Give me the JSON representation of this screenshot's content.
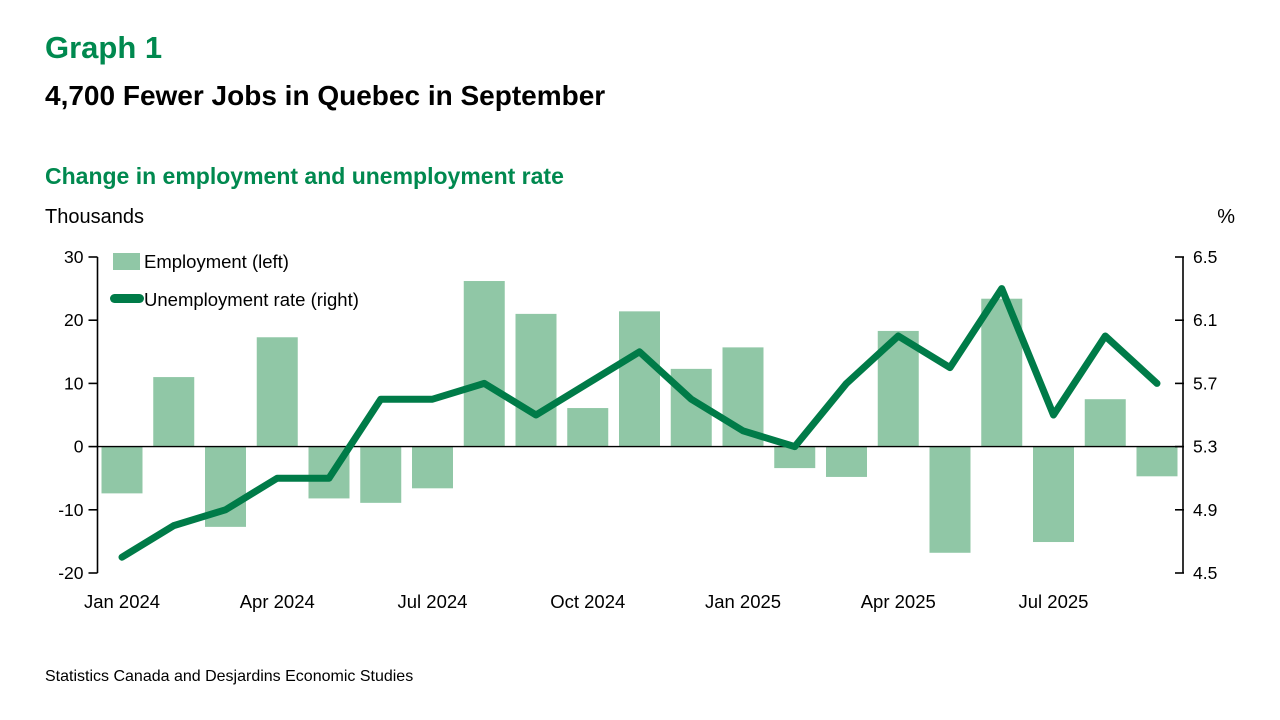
{
  "header": {
    "graph_label": "Graph 1",
    "title": "4,700 Fewer Jobs in Quebec in September",
    "subtitle": "Change in employment and unemployment rate",
    "left_unit": "Thousands",
    "right_unit": "%"
  },
  "legend": {
    "employment_label": "Employment (left)",
    "unemployment_label": "Unemployment rate (right)"
  },
  "footer": {
    "source": "Statistics Canada and Desjardins Economic Studies"
  },
  "colors": {
    "bar": "#90C7A6",
    "line": "#007B48",
    "accent_green": "#00894F",
    "axis": "#000000"
  },
  "chart_data": {
    "type": "bar",
    "title": "Change in employment and unemployment rate",
    "categories": [
      "Jan 2024",
      "Feb 2024",
      "Mar 2024",
      "Apr 2024",
      "May 2024",
      "Jun 2024",
      "Jul 2024",
      "Aug 2024",
      "Sep 2024",
      "Oct 2024",
      "Nov 2024",
      "Dec 2024",
      "Jan 2025",
      "Feb 2025",
      "Mar 2025",
      "Apr 2025",
      "May 2025",
      "Jun 2025",
      "Jul 2025",
      "Aug 2025",
      "Sep 2025"
    ],
    "series": [
      {
        "name": "Employment (left)",
        "type": "bar",
        "axis": "left",
        "values": [
          -7.4,
          11.0,
          -12.7,
          17.3,
          -8.2,
          -8.9,
          -6.6,
          26.2,
          21.0,
          6.1,
          21.4,
          12.3,
          15.7,
          -3.4,
          -4.8,
          18.3,
          -16.8,
          23.4,
          -15.1,
          7.5,
          -4.7
        ]
      },
      {
        "name": "Unemployment rate (right)",
        "type": "line",
        "axis": "right",
        "values": [
          4.6,
          4.8,
          4.9,
          5.1,
          5.1,
          5.6,
          5.6,
          5.7,
          5.5,
          5.7,
          5.9,
          5.6,
          5.4,
          5.3,
          5.7,
          6.0,
          5.8,
          6.3,
          5.5,
          6.0,
          5.7
        ]
      }
    ],
    "left_axis": {
      "label": "Thousands",
      "min": -20,
      "max": 30,
      "ticks": [
        30,
        20,
        10,
        0,
        -10,
        -20
      ]
    },
    "right_axis": {
      "label": "%",
      "min": 4.5,
      "max": 6.5,
      "ticks": [
        6.5,
        6.1,
        5.7,
        5.3,
        4.9,
        4.5
      ]
    },
    "x_tick_indices": [
      0,
      3,
      6,
      9,
      12,
      15,
      18
    ],
    "x_tick_labels": [
      "Jan 2024",
      "Apr 2024",
      "Jul 2024",
      "Oct 2024",
      "Jan 2025",
      "Apr 2025",
      "Jul 2025"
    ],
    "grid": false,
    "legend_position": "top-left-inside"
  }
}
